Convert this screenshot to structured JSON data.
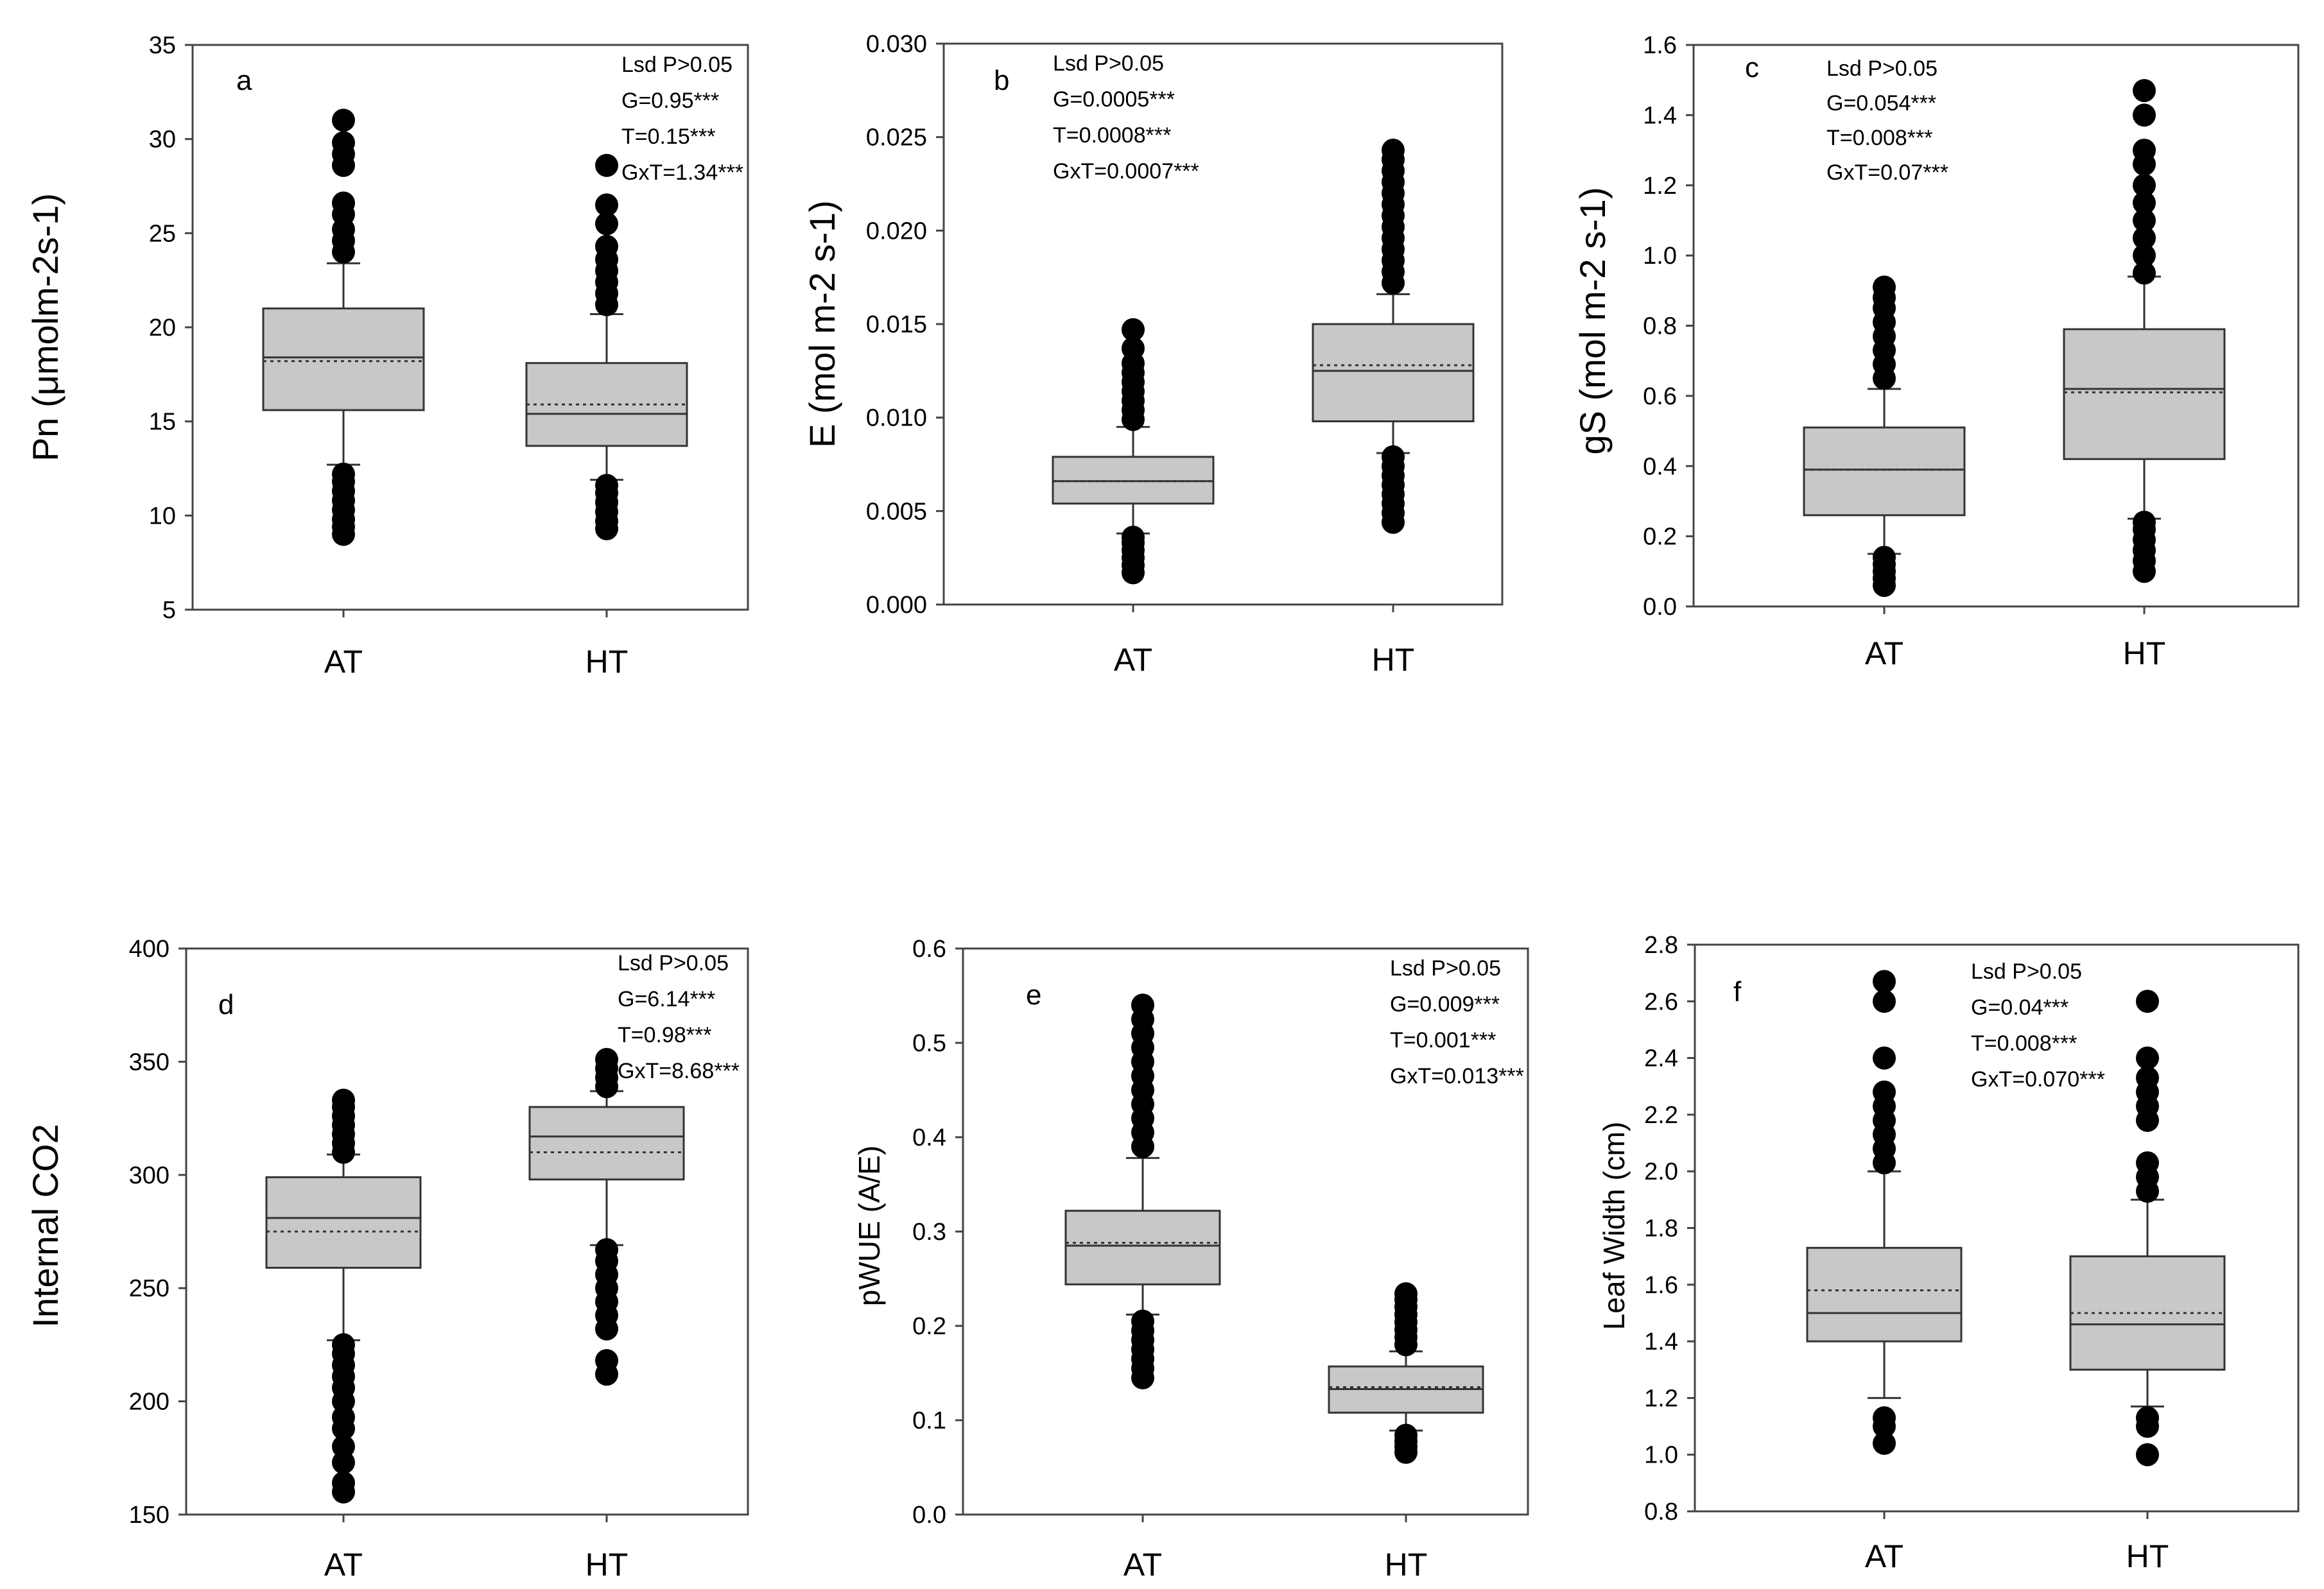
{
  "chart_data": [
    {
      "type": "box",
      "panel": "a",
      "ylabel": "Pn (μmolm-2s-1)",
      "ylim": [
        5,
        35
      ],
      "yticks": [
        "5",
        "10",
        "15",
        "20",
        "25",
        "30",
        "35"
      ],
      "categories": [
        "AT",
        "HT"
      ],
      "stats": [
        "Lsd P>0.05",
        "G=0.95***",
        "T=0.15***",
        "GxT=1.34***"
      ],
      "boxes": [
        {
          "category": "AT",
          "q1": 15.6,
          "median": 18.4,
          "q3": 21.0,
          "mean": 18.2,
          "whisker_low": 12.7,
          "whisker_high": 23.4,
          "outliers": [
            9.0,
            9.4,
            9.8,
            10.3,
            10.8,
            11.3,
            11.8,
            12.2,
            24.0,
            24.6,
            25.2,
            26.0,
            26.6,
            28.6,
            29.2,
            29.8,
            31.0
          ]
        },
        {
          "category": "HT",
          "q1": 13.7,
          "median": 15.4,
          "q3": 18.1,
          "mean": 15.9,
          "whisker_low": 11.9,
          "whisker_high": 20.7,
          "outliers": [
            9.3,
            9.7,
            10.2,
            10.7,
            11.2,
            11.6,
            21.2,
            21.8,
            22.4,
            23.0,
            23.6,
            24.3,
            25.5,
            26.5,
            28.6
          ]
        }
      ]
    },
    {
      "type": "box",
      "panel": "b",
      "ylabel": "E (mol m-2 s-1)",
      "ylim": [
        0,
        0.03
      ],
      "yticks": [
        "0.000",
        "0.005",
        "0.010",
        "0.015",
        "0.020",
        "0.025",
        "0.030"
      ],
      "categories": [
        "AT",
        "HT"
      ],
      "stats": [
        "Lsd P>0.05",
        "G=0.0005***",
        "T=0.0008***",
        "GxT=0.0007***"
      ],
      "boxes": [
        {
          "category": "AT",
          "q1": 0.0054,
          "median": 0.0066,
          "q3": 0.0079,
          "mean": 0.0066,
          "whisker_low": 0.0038,
          "whisker_high": 0.0095,
          "outliers": [
            0.0017,
            0.0021,
            0.0025,
            0.0029,
            0.0033,
            0.0036,
            0.0099,
            0.0104,
            0.0109,
            0.0114,
            0.0119,
            0.0124,
            0.0129,
            0.0137,
            0.0147
          ]
        },
        {
          "category": "HT",
          "q1": 0.0098,
          "median": 0.0125,
          "q3": 0.015,
          "mean": 0.0128,
          "whisker_low": 0.0081,
          "whisker_high": 0.0166,
          "outliers": [
            0.0044,
            0.0049,
            0.0054,
            0.0059,
            0.0064,
            0.0069,
            0.0074,
            0.0079,
            0.0172,
            0.0178,
            0.0184,
            0.019,
            0.0196,
            0.0202,
            0.0208,
            0.0214,
            0.022,
            0.0226,
            0.0232,
            0.0238,
            0.0243
          ]
        }
      ]
    },
    {
      "type": "box",
      "panel": "c",
      "ylabel": "gS (mol m-2 s-1)",
      "ylim": [
        0,
        1.6
      ],
      "yticks": [
        "0.0",
        "0.2",
        "0.4",
        "0.6",
        "0.8",
        "1.0",
        "1.2",
        "1.4",
        "1.6"
      ],
      "categories": [
        "AT",
        "HT"
      ],
      "stats": [
        "Lsd P>0.05",
        "G=0.054***",
        "T=0.008***",
        "GxT=0.07***"
      ],
      "boxes": [
        {
          "category": "AT",
          "q1": 0.26,
          "median": 0.39,
          "q3": 0.51,
          "mean": 0.39,
          "whisker_low": 0.15,
          "whisker_high": 0.62,
          "outliers": [
            0.06,
            0.08,
            0.1,
            0.12,
            0.14,
            0.65,
            0.69,
            0.73,
            0.77,
            0.81,
            0.85,
            0.88,
            0.91
          ]
        },
        {
          "category": "HT",
          "q1": 0.42,
          "median": 0.62,
          "q3": 0.79,
          "mean": 0.61,
          "whisker_low": 0.25,
          "whisker_high": 0.94,
          "outliers": [
            0.1,
            0.13,
            0.16,
            0.19,
            0.22,
            0.24,
            0.95,
            1.0,
            1.05,
            1.1,
            1.15,
            1.2,
            1.26,
            1.3,
            1.4,
            1.47
          ]
        }
      ]
    },
    {
      "type": "box",
      "panel": "d",
      "ylabel": "Internal CO2",
      "ylim": [
        150,
        400
      ],
      "yticks": [
        "150",
        "200",
        "250",
        "300",
        "350",
        "400"
      ],
      "categories": [
        "AT",
        "HT"
      ],
      "stats": [
        "Lsd P>0.05",
        "G=6.14***",
        "T=0.98***",
        "GxT=8.68***"
      ],
      "boxes": [
        {
          "category": "AT",
          "q1": 259,
          "median": 281,
          "q3": 299,
          "mean": 275,
          "whisker_low": 227,
          "whisker_high": 309,
          "outliers": [
            160,
            164,
            173,
            180,
            188,
            193,
            200,
            206,
            211,
            216,
            221,
            225,
            310,
            314,
            318,
            322,
            326,
            330,
            333
          ]
        },
        {
          "category": "HT",
          "q1": 298,
          "median": 317,
          "q3": 330,
          "mean": 310,
          "whisker_low": 269,
          "whisker_high": 337,
          "outliers": [
            212,
            218,
            232,
            238,
            244,
            250,
            256,
            262,
            267,
            339,
            343,
            347,
            351
          ]
        }
      ]
    },
    {
      "type": "box",
      "panel": "e",
      "ylabel": "pWUE (A/E)",
      "ylim": [
        0,
        0.6
      ],
      "yticks": [
        "0.0",
        "0.1",
        "0.2",
        "0.3",
        "0.4",
        "0.5",
        "0.6"
      ],
      "categories": [
        "AT",
        "HT"
      ],
      "stats": [
        "Lsd P>0.05",
        "G=0.009***",
        "T=0.001***",
        "GxT=0.013***"
      ],
      "boxes": [
        {
          "category": "AT",
          "q1": 0.244,
          "median": 0.285,
          "q3": 0.322,
          "mean": 0.288,
          "whisker_low": 0.212,
          "whisker_high": 0.378,
          "outliers": [
            0.145,
            0.155,
            0.165,
            0.175,
            0.185,
            0.195,
            0.205,
            0.39,
            0.405,
            0.42,
            0.435,
            0.45,
            0.465,
            0.48,
            0.495,
            0.51,
            0.525,
            0.54
          ]
        },
        {
          "category": "HT",
          "q1": 0.108,
          "median": 0.133,
          "q3": 0.157,
          "mean": 0.135,
          "whisker_low": 0.089,
          "whisker_high": 0.173,
          "outliers": [
            0.066,
            0.072,
            0.078,
            0.084,
            0.18,
            0.188,
            0.196,
            0.204,
            0.212,
            0.22,
            0.228,
            0.234
          ]
        }
      ]
    },
    {
      "type": "box",
      "panel": "f",
      "ylabel": "Leaf Width (cm)",
      "ylim": [
        0.8,
        2.8
      ],
      "yticks": [
        "0.8",
        "1.0",
        "1.2",
        "1.4",
        "1.6",
        "1.8",
        "2.0",
        "2.2",
        "2.4",
        "2.6",
        "2.8"
      ],
      "categories": [
        "AT",
        "HT"
      ],
      "stats": [
        "Lsd P>0.05",
        "G=0.04***",
        "T=0.008***",
        "GxT=0.070***"
      ],
      "boxes": [
        {
          "category": "AT",
          "q1": 1.4,
          "median": 1.5,
          "q3": 1.73,
          "mean": 1.58,
          "whisker_low": 1.2,
          "whisker_high": 2.0,
          "outliers": [
            1.04,
            1.1,
            1.13,
            2.03,
            2.08,
            2.13,
            2.18,
            2.23,
            2.28,
            2.4,
            2.6,
            2.67
          ]
        },
        {
          "category": "HT",
          "q1": 1.3,
          "median": 1.46,
          "q3": 1.7,
          "mean": 1.5,
          "whisker_low": 1.17,
          "whisker_high": 1.9,
          "outliers": [
            1.0,
            1.1,
            1.13,
            1.93,
            1.98,
            2.03,
            2.18,
            2.23,
            2.28,
            2.33,
            2.4,
            2.6
          ]
        }
      ]
    }
  ]
}
